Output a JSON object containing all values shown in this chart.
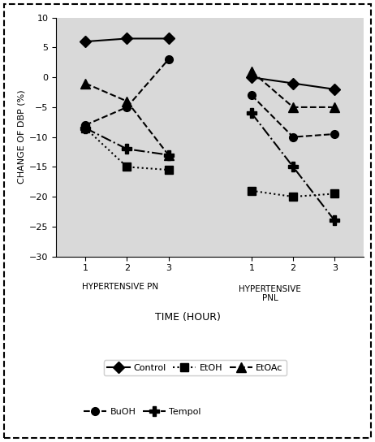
{
  "title": "",
  "ylabel": "CHANGE OF DBP (%)",
  "xlabel": "TIME (HOUR)",
  "ylim": [
    -30,
    10
  ],
  "yticks": [
    10,
    5,
    0,
    -5,
    -10,
    -15,
    -20,
    -25,
    -30
  ],
  "hours": [
    1,
    2,
    3
  ],
  "pn": {
    "Control": [
      6,
      6.5,
      6.5
    ],
    "EtOH": [
      -8.5,
      -15,
      -15.5
    ],
    "EtOAc": [
      -1,
      -4,
      -13
    ],
    "BuOH": [
      -8,
      -5,
      3
    ],
    "Tempol": [
      -8.5,
      -12,
      -13
    ]
  },
  "pnl": {
    "Control": [
      0,
      -1,
      -2
    ],
    "EtOH": [
      -19,
      -20,
      -19.5
    ],
    "EtOAc": [
      1,
      -5,
      -5
    ],
    "BuOH": [
      -3,
      -10,
      -9.5
    ],
    "Tempol": [
      -6,
      -15,
      -24
    ]
  },
  "label_pn": "HYPERTENSIVE PN",
  "label_pnl": "HYPERTENSIVE\nPNL",
  "bg_color": "#d9d9d9",
  "series_styles": {
    "Control": {
      "color": "black",
      "linestyle": "-",
      "marker": "D",
      "markersize": 7,
      "linewidth": 1.5
    },
    "EtOH": {
      "color": "black",
      "linestyle": ":",
      "marker": "s",
      "markersize": 7,
      "linewidth": 1.5
    },
    "EtOAc": {
      "color": "black",
      "linestyle": "--",
      "marker": "^",
      "markersize": 8,
      "linewidth": 1.5
    },
    "BuOH": {
      "color": "black",
      "linestyle": "--",
      "marker": "o",
      "markersize": 7,
      "linewidth": 1.5
    },
    "Tempol": {
      "color": "black",
      "linestyle": "-.",
      "marker": "P",
      "markersize": 8,
      "linewidth": 1.5
    }
  }
}
